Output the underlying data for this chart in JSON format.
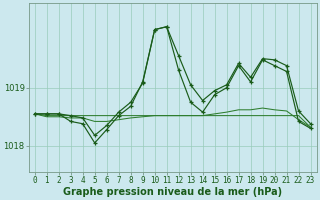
{
  "background_color": "#cce8ee",
  "plot_bg_color": "#cce8ee",
  "grid_color": "#99ccbb",
  "line_color_dark": "#1a5c1a",
  "line_color_med": "#2e7d2e",
  "xlabel": "Graphe pression niveau de la mer (hPa)",
  "xlabel_fontsize": 7.0,
  "tick_fontsize": 5.5,
  "ylim": [
    1017.55,
    1020.45
  ],
  "xlim": [
    -0.5,
    23.5
  ],
  "yticks": [
    1018,
    1019
  ],
  "xticks": [
    0,
    1,
    2,
    3,
    4,
    5,
    6,
    7,
    8,
    9,
    10,
    11,
    12,
    13,
    14,
    15,
    16,
    17,
    18,
    19,
    20,
    21,
    22,
    23
  ],
  "line1_marker": [
    1018.55,
    1018.55,
    1018.55,
    1018.52,
    1018.48,
    1018.18,
    1018.35,
    1018.58,
    1018.75,
    1019.08,
    1020.0,
    1020.05,
    1019.55,
    1019.05,
    1018.78,
    1018.95,
    1019.05,
    1019.42,
    1019.18,
    1019.5,
    1019.48,
    1019.38,
    1018.6,
    1018.38
  ],
  "line2_marker": [
    1018.55,
    1018.55,
    1018.55,
    1018.42,
    1018.38,
    1018.05,
    1018.28,
    1018.52,
    1018.68,
    1019.1,
    1020.0,
    1020.05,
    1019.3,
    1018.75,
    1018.58,
    1018.88,
    1019.0,
    1019.38,
    1019.1,
    1019.48,
    1019.38,
    1019.28,
    1018.42,
    1018.3
  ],
  "line3_flat": [
    1018.55,
    1018.52,
    1018.52,
    1018.52,
    1018.52,
    1018.52,
    1018.52,
    1018.52,
    1018.52,
    1018.52,
    1018.52,
    1018.52,
    1018.52,
    1018.52,
    1018.52,
    1018.52,
    1018.52,
    1018.52,
    1018.52,
    1018.52,
    1018.52,
    1018.52,
    1018.52,
    1018.32
  ],
  "line4_flat": [
    1018.55,
    1018.5,
    1018.5,
    1018.48,
    1018.48,
    1018.42,
    1018.42,
    1018.45,
    1018.48,
    1018.5,
    1018.52,
    1018.52,
    1018.52,
    1018.52,
    1018.52,
    1018.55,
    1018.58,
    1018.62,
    1018.62,
    1018.65,
    1018.62,
    1018.6,
    1018.45,
    1018.32
  ]
}
